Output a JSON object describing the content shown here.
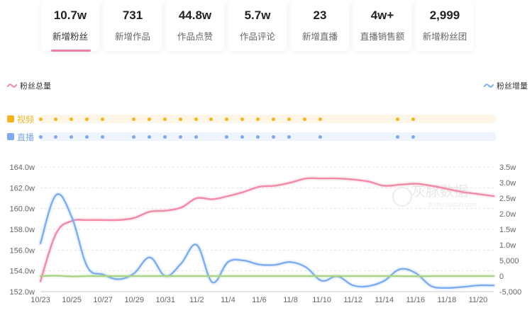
{
  "stats": [
    {
      "value": "10.7w",
      "label": "新增粉丝",
      "active": true
    },
    {
      "value": "731",
      "label": "新增作品",
      "active": false
    },
    {
      "value": "44.8w",
      "label": "作品点赞",
      "active": false
    },
    {
      "value": "5.7w",
      "label": "作品评论",
      "active": false
    },
    {
      "value": "23",
      "label": "新增直播",
      "active": false
    },
    {
      "value": "4w+",
      "label": "直播销售额",
      "active": false
    },
    {
      "value": "2,999",
      "label": "新增粉丝团",
      "active": false
    }
  ],
  "legend": {
    "left": "粉丝总量",
    "right": "粉丝增量"
  },
  "tracks": {
    "video": {
      "label": "视频",
      "days": [
        23,
        24,
        25,
        26,
        27,
        29,
        30,
        31,
        32,
        33,
        34,
        35,
        36,
        37,
        38,
        39,
        40,
        41,
        46,
        47
      ]
    },
    "live": {
      "label": "直播",
      "days": [
        23,
        24,
        25,
        26,
        27,
        29,
        30,
        31,
        32,
        33,
        35,
        36,
        37,
        38,
        39,
        41,
        46,
        47
      ]
    }
  },
  "colors": {
    "accent": "#f07fa1",
    "total_line": "#f28ba8",
    "increment_line": "#7eaef2",
    "third_line": "#a9d486",
    "video_dot": "#f5b31c",
    "video_bar": "#fdf6e7",
    "live_dot": "#7ea9ef",
    "live_bar": "#eef3fd",
    "grid": "#e4e4e4",
    "baseline": "#555555"
  },
  "watermark": {
    "name": "灰豚数据",
    "url": "zhihu.huitun.com"
  },
  "chart_data": {
    "type": "line",
    "x": [
      "10/23",
      "10/24",
      "10/25",
      "10/26",
      "10/27",
      "10/28",
      "10/29",
      "10/30",
      "10/31",
      "11/1",
      "11/2",
      "11/3",
      "11/4",
      "11/5",
      "11/6",
      "11/7",
      "11/8",
      "11/9",
      "11/10",
      "11/11",
      "11/12",
      "11/13",
      "11/14",
      "11/15",
      "11/16",
      "11/17",
      "11/18",
      "11/19",
      "11/20",
      "11/21"
    ],
    "x_tick_labels": [
      "10/23",
      "10/25",
      "10/27",
      "10/29",
      "10/31",
      "11/2",
      "11/4",
      "11/6",
      "11/8",
      "11/10",
      "11/12",
      "11/14",
      "11/16",
      "11/18",
      "11/20"
    ],
    "y_left": {
      "ticks": [
        "164.0w",
        "162.0w",
        "160.0w",
        "158.0w",
        "156.0w",
        "154.0w",
        "152.0w"
      ],
      "range": [
        152.0,
        164.0
      ]
    },
    "y_right": {
      "ticks": [
        "3.5w",
        "3.0w",
        "2.5w",
        "2.0w",
        "1.5w",
        "1.0w",
        "5,000",
        "0",
        "-5,000"
      ],
      "range": [
        -5000,
        35000
      ]
    },
    "series": [
      {
        "name": "粉丝总量",
        "axis": "left",
        "unit": "w",
        "values": [
          153.0,
          157.6,
          158.8,
          158.9,
          158.9,
          158.9,
          159.1,
          159.7,
          159.8,
          160.1,
          161.0,
          160.9,
          161.2,
          161.6,
          162.1,
          162.2,
          162.5,
          162.9,
          162.9,
          162.9,
          162.8,
          162.6,
          162.2,
          162.3,
          162.4,
          162.2,
          161.9,
          161.6,
          161.4,
          161.2
        ]
      },
      {
        "name": "粉丝增量",
        "axis": "right",
        "values": [
          10500,
          26000,
          19000,
          3000,
          500,
          -1000,
          900,
          6000,
          0,
          4000,
          10000,
          -2000,
          4500,
          5000,
          3700,
          3600,
          4500,
          2800,
          -1500,
          -100,
          -3000,
          -3200,
          -1500,
          2200,
          1000,
          -3200,
          -3800,
          -3500,
          -3000,
          -3000
        ]
      },
      {
        "axis": "right",
        "values": [
          0,
          100,
          -100,
          0,
          0,
          0,
          0,
          0,
          0,
          0,
          0,
          0,
          0,
          0,
          0,
          0,
          0,
          0,
          0,
          0,
          0,
          0,
          0,
          0,
          -50,
          0,
          0,
          0,
          0,
          0
        ]
      }
    ]
  }
}
